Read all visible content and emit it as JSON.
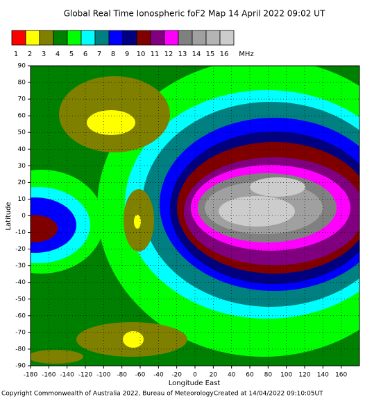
{
  "title": "Global Real Time Ionospheric foF2 Map  14 April 2022 09:02 UT",
  "legend": {
    "levels": [
      1,
      2,
      3,
      4,
      5,
      6,
      7,
      8,
      9,
      10,
      11,
      12,
      13,
      14,
      15,
      16
    ],
    "colors": [
      "#ff0000",
      "#ffff00",
      "#808000",
      "#008000",
      "#00ff00",
      "#00ffff",
      "#008080",
      "#0000ff",
      "#000080",
      "#800000",
      "#800080",
      "#ff00ff",
      "#808080",
      "#a0a0a0",
      "#b4b4b4",
      "#cccccc"
    ],
    "unit": "MHz"
  },
  "map": {
    "xlabel": "Longitude East",
    "ylabel": "Latitude",
    "xlim": [
      -180,
      180
    ],
    "ylim": [
      -90,
      90
    ],
    "xticks": [
      -180,
      -160,
      -140,
      -120,
      -100,
      -80,
      -60,
      -40,
      -20,
      0,
      20,
      40,
      60,
      80,
      100,
      120,
      140,
      160
    ],
    "yticks": [
      90,
      80,
      70,
      60,
      50,
      40,
      30,
      20,
      10,
      0,
      -10,
      -20,
      -30,
      -40,
      -50,
      -60,
      -70,
      -80,
      -90
    ],
    "grid": true
  },
  "footer": {
    "copyright": "Copyright Commonwealth of Australia 2022, Bureau of Meteorology",
    "created": "Created at 14/04/2022 09:10:05UT"
  }
}
